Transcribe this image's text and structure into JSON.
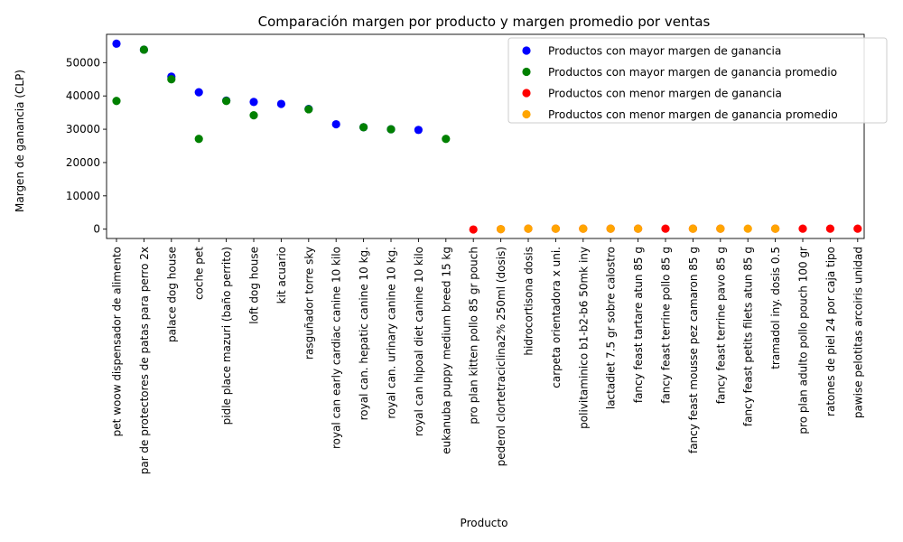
{
  "chart_data": {
    "type": "scatter",
    "title": "Comparación margen por producto y margen promedio por ventas",
    "xlabel": "Producto",
    "ylabel": "Margen de ganancia (CLP)",
    "ylim": [
      -2800,
      58500
    ],
    "yticks": [
      0,
      10000,
      20000,
      30000,
      40000,
      50000
    ],
    "ytick_labels": [
      "0",
      "10000",
      "20000",
      "30000",
      "40000",
      "50000"
    ],
    "grid": false,
    "legend_position": "top-right",
    "categories": [
      "pet woow dispensador de alimento",
      "par de protectores de patas para perro 2x",
      "palace dog house",
      "coche pet",
      "pidle place mazuri (baño perrito)",
      "loft dog house",
      "kit acuario",
      "rasguñador torre sky",
      "royal can  early cardiac  canine 10 kilo",
      "royal can. hepatic canine 10 kg.",
      "royal can. urinary canine 10 kg.",
      "royal can  hipoal diet canine 10 kilo",
      "eukanuba puppy medium breed 15 kg",
      "pro plan kitten pollo 85 gr pouch",
      "pederol clortetraciclina2% 250ml (dosis)",
      "hidrocortisona dosis",
      "carpeta orientadora x uni.",
      "polivitaminico b1-b2-b6 50mk iny",
      "lactadiet 7.5 gr sobre calostro",
      "fancy feast tartare atun 85 g",
      "fancy feast terrine pollo 85 g",
      "fancy feast mousse pez camaron 85 g",
      "fancy feast terrine pavo 85 g",
      "fancy feast petits filets atun 85 g",
      "tramadol iny. dosis 0.5",
      "pro plan adulto pollo pouch 100 gr",
      "ratones de piel 24 por caja tipo",
      "pawise pelotitas arcoiris unidad"
    ],
    "series": [
      {
        "name": "Productos con mayor margen de ganancia",
        "color": "#0000ff",
        "points": [
          {
            "x": "pet woow dispensador de alimento",
            "y": 55700
          },
          {
            "x": "par de protectores de patas para perro 2x",
            "y": 53900
          },
          {
            "x": "palace dog house",
            "y": 45800
          },
          {
            "x": "coche pet",
            "y": 41100
          },
          {
            "x": "pidle place mazuri (baño perrito)",
            "y": 38600
          },
          {
            "x": "loft dog house",
            "y": 38200
          },
          {
            "x": "kit acuario",
            "y": 37600
          },
          {
            "x": "rasguñador torre sky",
            "y": 36100
          },
          {
            "x": "royal can  early cardiac  canine 10 kilo",
            "y": 31500
          },
          {
            "x": "royal can. hepatic canine 10 kg.",
            "y": 30600
          },
          {
            "x": "royal can. urinary canine 10 kg.",
            "y": 30000
          },
          {
            "x": "royal can  hipoal diet canine 10 kilo",
            "y": 29800
          }
        ]
      },
      {
        "name": "Productos con mayor margen de ganancia promedio",
        "color": "#008000",
        "points": [
          {
            "x": "pet woow dispensador de alimento",
            "y": 38500
          },
          {
            "x": "par de protectores de patas para perro 2x",
            "y": 53900
          },
          {
            "x": "palace dog house",
            "y": 45000
          },
          {
            "x": "coche pet",
            "y": 27100
          },
          {
            "x": "pidle place mazuri (baño perrito)",
            "y": 38500
          },
          {
            "x": "loft dog house",
            "y": 34200
          },
          {
            "x": "rasguñador torre sky",
            "y": 36000
          },
          {
            "x": "royal can. hepatic canine 10 kg.",
            "y": 30600
          },
          {
            "x": "royal can. urinary canine 10 kg.",
            "y": 30000
          },
          {
            "x": "eukanuba puppy medium breed 15 kg",
            "y": 27100
          }
        ]
      },
      {
        "name": "Productos con menor margen de ganancia",
        "color": "#ff0000",
        "points": [
          {
            "x": "pro plan kitten pollo 85 gr pouch",
            "y": -100
          },
          {
            "x": "pederol clortetraciclina2% 250ml (dosis)",
            "y": 0
          },
          {
            "x": "hidrocortisona dosis",
            "y": 150
          },
          {
            "x": "carpeta orientadora x uni.",
            "y": 150
          },
          {
            "x": "polivitaminico b1-b2-b6 50mk iny",
            "y": 150
          },
          {
            "x": "lactadiet 7.5 gr sobre calostro",
            "y": 150
          },
          {
            "x": "fancy feast tartare atun 85 g",
            "y": 150
          },
          {
            "x": "fancy feast terrine pollo 85 g",
            "y": 150
          },
          {
            "x": "fancy feast mousse pez camaron 85 g",
            "y": 150
          },
          {
            "x": "fancy feast terrine pavo 85 g",
            "y": 150
          },
          {
            "x": "tramadol iny. dosis 0.5",
            "y": 150
          },
          {
            "x": "pro plan adulto pollo pouch 100 gr",
            "y": 150
          },
          {
            "x": "ratones de piel 24 por caja tipo",
            "y": 150
          },
          {
            "x": "pawise pelotitas arcoiris unidad",
            "y": 150
          }
        ]
      },
      {
        "name": "Productos con menor margen de ganancia promedio",
        "color": "#ffa500",
        "points": [
          {
            "x": "pederol clortetraciclina2% 250ml (dosis)",
            "y": 0
          },
          {
            "x": "hidrocortisona dosis",
            "y": 150
          },
          {
            "x": "carpeta orientadora x uni.",
            "y": 150
          },
          {
            "x": "polivitaminico b1-b2-b6 50mk iny",
            "y": 150
          },
          {
            "x": "lactadiet 7.5 gr sobre calostro",
            "y": 150
          },
          {
            "x": "fancy feast tartare atun 85 g",
            "y": 150
          },
          {
            "x": "fancy feast mousse pez camaron 85 g",
            "y": 150
          },
          {
            "x": "fancy feast terrine pavo 85 g",
            "y": 150
          },
          {
            "x": "fancy feast petits filets atun 85 g",
            "y": 150
          },
          {
            "x": "tramadol iny. dosis 0.5",
            "y": 150
          }
        ]
      }
    ]
  }
}
